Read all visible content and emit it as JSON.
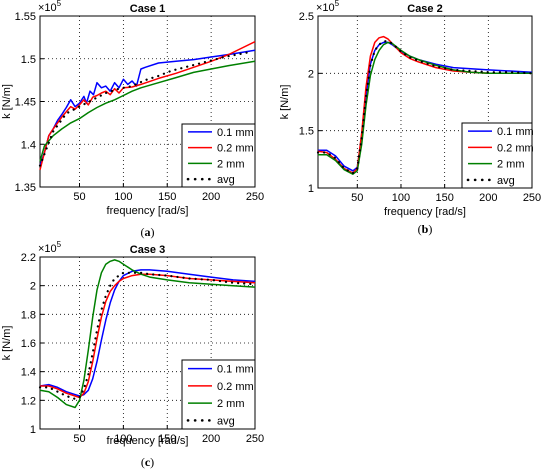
{
  "chart_data": [
    {
      "type": "line",
      "title": "Case 1",
      "caption": "(a)",
      "xlabel": "frequency [rad/s]",
      "ylabel": "k [N/m]",
      "y_multiplier": "×10",
      "y_exponent": "5",
      "xlim": [
        5,
        250
      ],
      "ylim": [
        1.35,
        1.55
      ],
      "xticks": [
        "50",
        "100",
        "150",
        "200",
        "250"
      ],
      "yticks": [
        "1.35",
        "1.4",
        "1.45",
        "1.5",
        "1.55"
      ],
      "grid": true,
      "legend_position": "bottom-right",
      "series": [
        {
          "name": "0.1 mm",
          "color": "#0000ff",
          "style": "solid",
          "x": [
            5,
            10,
            15,
            20,
            25,
            30,
            35,
            40,
            45,
            50,
            55,
            58,
            62,
            66,
            70,
            75,
            80,
            85,
            90,
            95,
            100,
            105,
            110,
            115,
            120,
            125,
            140,
            160,
            180,
            200,
            220,
            250
          ],
          "y": [
            1.375,
            1.39,
            1.41,
            1.418,
            1.428,
            1.435,
            1.443,
            1.452,
            1.444,
            1.448,
            1.456,
            1.448,
            1.462,
            1.458,
            1.472,
            1.466,
            1.468,
            1.462,
            1.472,
            1.466,
            1.476,
            1.47,
            1.474,
            1.468,
            1.488,
            1.49,
            1.495,
            1.497,
            1.499,
            1.502,
            1.505,
            1.51
          ]
        },
        {
          "name": "0.2 mm",
          "color": "#ff0000",
          "style": "solid",
          "x": [
            5,
            10,
            15,
            20,
            25,
            30,
            35,
            40,
            45,
            50,
            55,
            60,
            65,
            70,
            75,
            80,
            85,
            90,
            95,
            100,
            110,
            120,
            140,
            160,
            180,
            200,
            220,
            250
          ],
          "y": [
            1.37,
            1.39,
            1.41,
            1.418,
            1.425,
            1.432,
            1.438,
            1.444,
            1.441,
            1.446,
            1.452,
            1.446,
            1.455,
            1.457,
            1.46,
            1.462,
            1.458,
            1.465,
            1.46,
            1.466,
            1.467,
            1.47,
            1.477,
            1.483,
            1.49,
            1.497,
            1.505,
            1.52
          ]
        },
        {
          "name": "2 mm",
          "color": "#008000",
          "style": "solid",
          "x": [
            5,
            10,
            20,
            30,
            40,
            50,
            60,
            70,
            80,
            90,
            100,
            110,
            120,
            140,
            160,
            180,
            200,
            220,
            250
          ],
          "y": [
            1.38,
            1.398,
            1.41,
            1.418,
            1.425,
            1.43,
            1.437,
            1.443,
            1.448,
            1.452,
            1.457,
            1.462,
            1.466,
            1.472,
            1.478,
            1.484,
            1.488,
            1.492,
            1.497
          ]
        },
        {
          "name": "avg",
          "color": "#000000",
          "style": "dotted",
          "x": [
            5,
            20,
            35,
            50,
            65,
            80,
            95,
            110,
            125,
            140,
            155,
            170,
            185,
            200,
            215,
            230,
            245
          ],
          "y": [
            1.375,
            1.415,
            1.436,
            1.444,
            1.452,
            1.46,
            1.465,
            1.468,
            1.475,
            1.48,
            1.486,
            1.49,
            1.494,
            1.498,
            1.502,
            1.505,
            1.508
          ]
        }
      ]
    },
    {
      "type": "line",
      "title": "Case 2",
      "caption": "(b)",
      "xlabel": "frequency [rad/s]",
      "ylabel": "k [N/m]",
      "y_multiplier": "×10",
      "y_exponent": "5",
      "xlim": [
        5,
        250
      ],
      "ylim": [
        1.0,
        2.5
      ],
      "xticks": [
        "50",
        "100",
        "150",
        "200",
        "250"
      ],
      "yticks": [
        "1",
        "1.5",
        "2",
        "2.5"
      ],
      "grid": true,
      "legend_position": "bottom-right",
      "series": [
        {
          "name": "0.1 mm",
          "color": "#0000ff",
          "style": "solid",
          "x": [
            5,
            15,
            25,
            35,
            45,
            50,
            55,
            60,
            65,
            70,
            75,
            80,
            85,
            90,
            100,
            110,
            120,
            140,
            160,
            180,
            200,
            225,
            250
          ],
          "y": [
            1.33,
            1.33,
            1.28,
            1.19,
            1.15,
            1.18,
            1.45,
            1.8,
            2.08,
            2.2,
            2.25,
            2.27,
            2.27,
            2.25,
            2.19,
            2.15,
            2.12,
            2.08,
            2.05,
            2.04,
            2.03,
            2.02,
            2.01
          ]
        },
        {
          "name": "0.2 mm",
          "color": "#ff0000",
          "style": "solid",
          "x": [
            5,
            15,
            25,
            35,
            45,
            50,
            55,
            60,
            65,
            70,
            75,
            80,
            85,
            90,
            100,
            110,
            120,
            140,
            160,
            180,
            200,
            225,
            250
          ],
          "y": [
            1.32,
            1.31,
            1.25,
            1.17,
            1.13,
            1.17,
            1.48,
            1.88,
            2.15,
            2.27,
            2.31,
            2.32,
            2.3,
            2.26,
            2.18,
            2.13,
            2.1,
            2.05,
            2.02,
            2.01,
            2.0,
            2.0,
            2.0
          ]
        },
        {
          "name": "2 mm",
          "color": "#008000",
          "style": "solid",
          "x": [
            5,
            15,
            25,
            35,
            45,
            50,
            55,
            60,
            65,
            70,
            75,
            80,
            85,
            90,
            100,
            110,
            120,
            140,
            160,
            180,
            200,
            225,
            250
          ],
          "y": [
            1.29,
            1.29,
            1.24,
            1.16,
            1.12,
            1.15,
            1.38,
            1.72,
            1.98,
            2.12,
            2.2,
            2.25,
            2.27,
            2.26,
            2.2,
            2.15,
            2.12,
            2.07,
            2.03,
            2.01,
            2.0,
            2.0,
            2.0
          ]
        },
        {
          "name": "avg",
          "color": "#000000",
          "style": "dotted",
          "x": [
            5,
            15,
            25,
            35,
            45,
            50,
            55,
            60,
            65,
            70,
            75,
            80,
            85,
            90,
            100,
            110,
            120,
            140,
            160,
            180,
            200,
            225,
            250
          ],
          "y": [
            1.31,
            1.31,
            1.26,
            1.17,
            1.13,
            1.17,
            1.44,
            1.8,
            2.07,
            2.2,
            2.25,
            2.28,
            2.28,
            2.26,
            2.19,
            2.14,
            2.11,
            2.06,
            2.03,
            2.02,
            2.01,
            2.01,
            2.0
          ]
        }
      ]
    },
    {
      "type": "line",
      "title": "Case 3",
      "caption": "(c)",
      "xlabel": "frequency [rad/s]",
      "ylabel": "k [N/m]",
      "y_multiplier": "×10",
      "y_exponent": "5",
      "xlim": [
        5,
        250
      ],
      "ylim": [
        1.0,
        2.2
      ],
      "xticks": [
        "50",
        "100",
        "150",
        "200",
        "250"
      ],
      "yticks": [
        "1",
        "1.2",
        "1.4",
        "1.6",
        "1.8",
        "2",
        "2.2"
      ],
      "grid": true,
      "legend_position": "bottom-right",
      "series": [
        {
          "name": "0.1 mm",
          "color": "#0000ff",
          "style": "solid",
          "x": [
            5,
            15,
            25,
            35,
            45,
            50,
            55,
            60,
            65,
            70,
            75,
            80,
            85,
            90,
            95,
            100,
            110,
            120,
            130,
            150,
            175,
            200,
            225,
            250
          ],
          "y": [
            1.3,
            1.31,
            1.29,
            1.26,
            1.24,
            1.23,
            1.24,
            1.27,
            1.35,
            1.47,
            1.62,
            1.76,
            1.88,
            1.97,
            2.03,
            2.07,
            2.1,
            2.11,
            2.11,
            2.1,
            2.08,
            2.06,
            2.04,
            2.03
          ]
        },
        {
          "name": "0.2 mm",
          "color": "#ff0000",
          "style": "solid",
          "x": [
            5,
            15,
            25,
            35,
            45,
            50,
            55,
            60,
            65,
            70,
            75,
            80,
            85,
            90,
            95,
            100,
            110,
            120,
            130,
            150,
            175,
            200,
            225,
            250
          ],
          "y": [
            1.3,
            1.3,
            1.28,
            1.25,
            1.23,
            1.22,
            1.25,
            1.33,
            1.47,
            1.63,
            1.78,
            1.89,
            1.96,
            2.0,
            2.03,
            2.05,
            2.07,
            2.08,
            2.08,
            2.07,
            2.05,
            2.04,
            2.03,
            2.02
          ]
        },
        {
          "name": "2 mm",
          "color": "#008000",
          "style": "solid",
          "x": [
            5,
            15,
            25,
            35,
            45,
            50,
            55,
            60,
            65,
            70,
            75,
            80,
            85,
            90,
            95,
            100,
            110,
            120,
            130,
            150,
            175,
            200,
            225,
            250
          ],
          "y": [
            1.27,
            1.26,
            1.22,
            1.17,
            1.15,
            1.2,
            1.34,
            1.55,
            1.78,
            1.97,
            2.09,
            2.15,
            2.17,
            2.18,
            2.17,
            2.15,
            2.11,
            2.08,
            2.06,
            2.04,
            2.02,
            2.01,
            2.0,
            1.99
          ]
        },
        {
          "name": "avg",
          "color": "#000000",
          "style": "dotted",
          "x": [
            5,
            15,
            25,
            35,
            45,
            50,
            55,
            60,
            65,
            70,
            75,
            80,
            85,
            90,
            95,
            100,
            110,
            120,
            130,
            150,
            175,
            200,
            225,
            250
          ],
          "y": [
            1.29,
            1.29,
            1.26,
            1.23,
            1.21,
            1.22,
            1.28,
            1.38,
            1.53,
            1.69,
            1.83,
            1.93,
            2.0,
            2.05,
            2.07,
            2.09,
            2.09,
            2.09,
            2.08,
            2.07,
            2.05,
            2.04,
            2.02,
            2.01
          ]
        }
      ]
    }
  ]
}
